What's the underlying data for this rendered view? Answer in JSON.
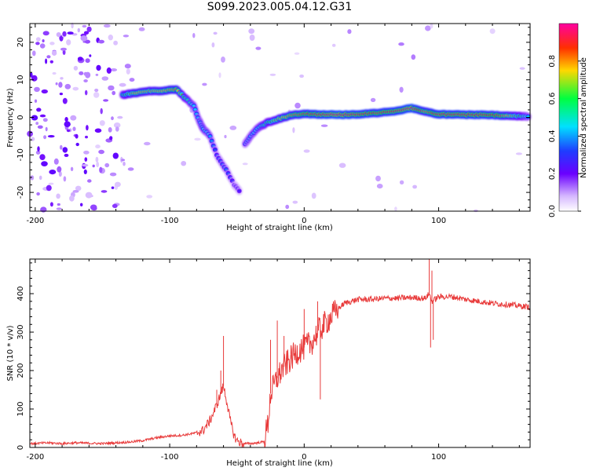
{
  "title": "S099.2023.005.04.12.G31",
  "chart_data": [
    {
      "type": "heatmap",
      "title": "S099.2023.005.04.12.G31",
      "xlabel": "Height of straight line (km)",
      "ylabel": "Frequency (Hz)",
      "xlim": [
        -204,
        168
      ],
      "ylim": [
        -25,
        25
      ],
      "x_ticks": [
        -200,
        -100,
        0,
        100
      ],
      "y_ticks": [
        -20,
        -10,
        0,
        10,
        20
      ],
      "colorbar": {
        "label": "Normalized spectral amplitude",
        "ticks": [
          "0.0",
          "0.2",
          "0.4",
          "0.6",
          "0.8"
        ],
        "range": [
          0,
          1
        ]
      },
      "ridge": [
        {
          "x": -135,
          "y": 6,
          "a": 0.55
        },
        {
          "x": -125,
          "y": 6.5,
          "a": 0.75
        },
        {
          "x": -115,
          "y": 7,
          "a": 0.7
        },
        {
          "x": -105,
          "y": 7,
          "a": 0.75
        },
        {
          "x": -95,
          "y": 7.5,
          "a": 0.8
        },
        {
          "x": -88,
          "y": 5,
          "a": 0.55
        },
        {
          "x": -82,
          "y": 3,
          "a": 0.45
        },
        {
          "x": -78,
          "y": -1,
          "a": 0.4
        },
        {
          "x": -75,
          "y": -3,
          "a": 0.45
        },
        {
          "x": -70,
          "y": -5,
          "a": 0.4
        },
        {
          "x": -65,
          "y": -10,
          "a": 0.3
        },
        {
          "x": -58,
          "y": -14,
          "a": 0.35
        },
        {
          "x": -52,
          "y": -18,
          "a": 0.25
        },
        {
          "x": -47,
          "y": -20,
          "a": 0.25
        },
        {
          "x": -44,
          "y": -7,
          "a": 0.35
        },
        {
          "x": -40,
          "y": -5,
          "a": 0.4
        },
        {
          "x": -35,
          "y": -3,
          "a": 0.45
        },
        {
          "x": -28,
          "y": -1.5,
          "a": 0.55
        },
        {
          "x": -20,
          "y": -0.5,
          "a": 0.7
        },
        {
          "x": -10,
          "y": 0.5,
          "a": 0.8
        },
        {
          "x": 0,
          "y": 1,
          "a": 0.85
        },
        {
          "x": 10,
          "y": 0.8,
          "a": 0.9
        },
        {
          "x": 25,
          "y": 0.7,
          "a": 0.95
        },
        {
          "x": 40,
          "y": 0.8,
          "a": 0.9
        },
        {
          "x": 55,
          "y": 1.2,
          "a": 0.85
        },
        {
          "x": 70,
          "y": 1.8,
          "a": 0.9
        },
        {
          "x": 80,
          "y": 2.5,
          "a": 0.95
        },
        {
          "x": 90,
          "y": 1.5,
          "a": 0.8
        },
        {
          "x": 100,
          "y": 0.8,
          "a": 0.9
        },
        {
          "x": 115,
          "y": 0.7,
          "a": 0.9
        },
        {
          "x": 130,
          "y": 0.7,
          "a": 0.9
        },
        {
          "x": 145,
          "y": 0.5,
          "a": 0.85
        },
        {
          "x": 160,
          "y": 0.3,
          "a": 0.6
        },
        {
          "x": 168,
          "y": 0.2,
          "a": 0.4
        }
      ]
    },
    {
      "type": "line",
      "xlabel": "Height of straight line (km)",
      "ylabel": "SNR (10 * v/v)",
      "xlim": [
        -204,
        168
      ],
      "ylim": [
        0,
        490
      ],
      "x_ticks": [
        -200,
        -100,
        0,
        100
      ],
      "y_ticks": [
        0,
        100,
        200,
        300,
        400
      ],
      "color": "#e83a3a",
      "x": [
        -204,
        -190,
        -180,
        -170,
        -160,
        -150,
        -140,
        -130,
        -120,
        -110,
        -100,
        -90,
        -85,
        -80,
        -75,
        -70,
        -65,
        -60,
        -57,
        -55,
        -52,
        -50,
        -47,
        -45,
        -40,
        -35,
        -30,
        -27,
        -25,
        -20,
        -15,
        -10,
        -5,
        0,
        5,
        10,
        15,
        20,
        25,
        30,
        35,
        40,
        50,
        60,
        70,
        80,
        90,
        93,
        95,
        97,
        100,
        110,
        120,
        130,
        140,
        150,
        160,
        168
      ],
      "y": [
        10,
        12,
        10,
        12,
        11,
        10,
        12,
        14,
        18,
        25,
        30,
        32,
        35,
        38,
        45,
        70,
        110,
        160,
        110,
        70,
        30,
        18,
        12,
        10,
        10,
        12,
        15,
        60,
        140,
        180,
        210,
        230,
        250,
        260,
        270,
        300,
        320,
        340,
        360,
        375,
        380,
        385,
        385,
        388,
        388,
        390,
        388,
        400,
        380,
        385,
        392,
        392,
        385,
        380,
        375,
        372,
        368,
        365
      ],
      "spikes": [
        {
          "x": -60,
          "y": 290
        },
        {
          "x": -62,
          "y": 200
        },
        {
          "x": -65,
          "y": 150
        },
        {
          "x": -25,
          "y": 280
        },
        {
          "x": -20,
          "y": 330
        },
        {
          "x": -15,
          "y": 290
        },
        {
          "x": -10,
          "y": 240
        },
        {
          "x": 0,
          "y": 360
        },
        {
          "x": 10,
          "y": 380
        },
        {
          "x": 12,
          "y": 125
        },
        {
          "x": 93,
          "y": 490
        },
        {
          "x": 94,
          "y": 260
        },
        {
          "x": 95,
          "y": 460
        },
        {
          "x": 96,
          "y": 280
        }
      ]
    }
  ]
}
